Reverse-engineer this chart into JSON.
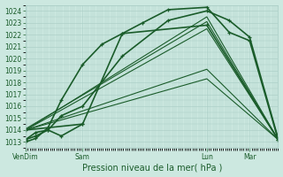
{
  "xlabel": "Pression niveau de la mer( hPa )",
  "bg_color": "#cce8e0",
  "grid_color": "#a8ccC4",
  "line_color": "#1a5c2a",
  "ylim": [
    1012.5,
    1024.5
  ],
  "yticks": [
    1013,
    1014,
    1015,
    1016,
    1017,
    1018,
    1019,
    1020,
    1021,
    1022,
    1023,
    1024
  ],
  "ylabel_fontsize": 6,
  "xtick_labels": [
    "VenDim",
    "Sam",
    "Lun",
    "Mar"
  ],
  "xtick_positions": [
    0,
    56,
    178,
    220
  ],
  "xlim": [
    0,
    248
  ],
  "series": [
    {
      "x": [
        0,
        10,
        22,
        35,
        56,
        75,
        95,
        115,
        140,
        178,
        200,
        220,
        248
      ],
      "y": [
        1013.0,
        1013.3,
        1014.2,
        1016.5,
        1019.5,
        1021.2,
        1022.1,
        1023.0,
        1024.1,
        1024.3,
        1022.2,
        1021.5,
        1013.2
      ],
      "marker": true,
      "lw": 1.2
    },
    {
      "x": [
        0,
        178,
        248
      ],
      "y": [
        1014.0,
        1023.5,
        1013.2
      ],
      "marker": false,
      "lw": 0.8
    },
    {
      "x": [
        0,
        178,
        248
      ],
      "y": [
        1014.1,
        1023.1,
        1013.2
      ],
      "marker": false,
      "lw": 0.8
    },
    {
      "x": [
        0,
        178,
        248
      ],
      "y": [
        1014.0,
        1022.5,
        1013.2
      ],
      "marker": false,
      "lw": 0.8
    },
    {
      "x": [
        0,
        178,
        248
      ],
      "y": [
        1014.0,
        1019.1,
        1013.2
      ],
      "marker": false,
      "lw": 0.8
    },
    {
      "x": [
        0,
        178,
        248
      ],
      "y": [
        1014.0,
        1018.3,
        1013.2
      ],
      "marker": false,
      "lw": 0.8
    },
    {
      "x": [
        0,
        56,
        95,
        178,
        248
      ],
      "y": [
        1014.0,
        1014.5,
        1022.1,
        1022.8,
        1013.2
      ],
      "marker": true,
      "lw": 1.2
    },
    {
      "x": [
        0,
        10,
        22,
        35,
        56,
        95,
        140,
        178,
        200,
        220,
        248
      ],
      "y": [
        1013.2,
        1013.5,
        1014.0,
        1015.2,
        1016.0,
        1020.2,
        1023.2,
        1024.0,
        1023.2,
        1021.8,
        1013.3
      ],
      "marker": true,
      "lw": 1.2
    },
    {
      "x": [
        0,
        10,
        22,
        35,
        56
      ],
      "y": [
        1013.2,
        1013.8,
        1014.0,
        1013.5,
        1014.5
      ],
      "marker": true,
      "lw": 1.2
    }
  ]
}
